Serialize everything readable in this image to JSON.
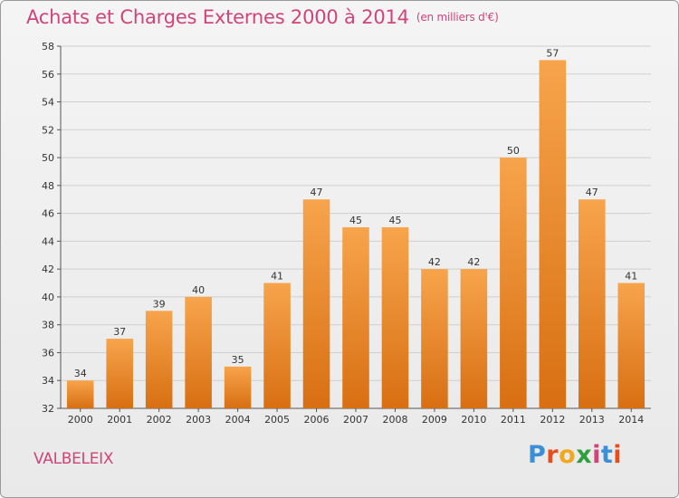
{
  "header": {
    "title": "Achats et Charges Externes 2000 à 2014",
    "unit": "(en milliers d'€)"
  },
  "footer": {
    "commune": "VALBELEIX",
    "logo": {
      "letters": [
        "P",
        "r",
        "o",
        "x",
        "i",
        "t",
        "i"
      ],
      "colors": [
        "#3a8fd6",
        "#e84e1b",
        "#f2a81d",
        "#2e9f3c",
        "#d1447a",
        "#3a8fd6",
        "#e84e1b"
      ]
    }
  },
  "chart_data": {
    "type": "bar",
    "title": "Achats et Charges Externes 2000 à 2014",
    "subtitle": "(en milliers d'€)",
    "categories": [
      "2000",
      "2001",
      "2002",
      "2003",
      "2004",
      "2005",
      "2006",
      "2007",
      "2008",
      "2009",
      "2010",
      "2011",
      "2012",
      "2013",
      "2014"
    ],
    "values": [
      34,
      37,
      39,
      40,
      35,
      41,
      47,
      45,
      45,
      42,
      42,
      50,
      57,
      47,
      41
    ],
    "ylim": [
      32,
      58
    ],
    "yticks": [
      32,
      34,
      36,
      38,
      40,
      42,
      44,
      46,
      48,
      50,
      52,
      54,
      56,
      58
    ],
    "grid": true,
    "colors": {
      "bar_light": "#f7a44c",
      "bar_dark": "#d86f12",
      "axis": "#555555",
      "grid": "#cfcfcf"
    }
  }
}
